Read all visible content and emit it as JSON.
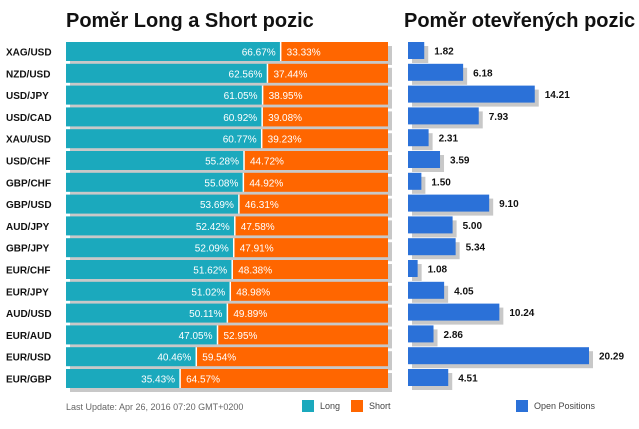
{
  "titles": {
    "left": "Poměr Long a Short pozic",
    "right": "Poměr otevřených pozic"
  },
  "footer": {
    "last_update": "Last Update: Apr 26, 2016 07:20 GMT+0200"
  },
  "legend": {
    "long": "Long",
    "short": "Short",
    "open_positions": "Open Positions"
  },
  "colors": {
    "long": "#1ba9bd",
    "short": "#ff6600",
    "open": "#2b71d8",
    "shadow": "#c8c8c8"
  },
  "chart_data": [
    {
      "type": "bar",
      "stacked": true,
      "orientation": "horizontal",
      "title": "Poměr Long a Short pozic",
      "categories": [
        "XAG/USD",
        "NZD/USD",
        "USD/JPY",
        "USD/CAD",
        "XAU/USD",
        "USD/CHF",
        "GBP/CHF",
        "GBP/USD",
        "AUD/JPY",
        "GBP/JPY",
        "EUR/CHF",
        "EUR/JPY",
        "AUD/USD",
        "EUR/AUD",
        "EUR/USD",
        "EUR/GBP"
      ],
      "series": [
        {
          "name": "Long",
          "values": [
            66.67,
            62.56,
            61.05,
            60.92,
            60.77,
            55.28,
            55.08,
            53.69,
            52.42,
            52.09,
            51.62,
            51.02,
            50.11,
            47.05,
            40.46,
            35.43
          ],
          "labels": [
            "66.67%",
            "62.56%",
            "61.05%",
            "60.92%",
            "60.77%",
            "55.28%",
            "55.08%",
            "53.69%",
            "52.42%",
            "52.09%",
            "51.62%",
            "51.02%",
            "50.11%",
            "47.05%",
            "40.46%",
            "35.43%"
          ]
        },
        {
          "name": "Short",
          "values": [
            33.33,
            37.44,
            38.95,
            39.08,
            39.23,
            44.72,
            44.92,
            46.31,
            47.58,
            47.91,
            48.38,
            48.98,
            49.89,
            52.95,
            59.54,
            64.57
          ],
          "labels": [
            "33.33%",
            "37.44%",
            "38.95%",
            "39.08%",
            "39.23%",
            "44.72%",
            "44.92%",
            "46.31%",
            "47.58%",
            "47.91%",
            "48.38%",
            "48.98%",
            "49.89%",
            "52.95%",
            "59.54%",
            "64.57%"
          ]
        }
      ],
      "xlim": [
        0,
        100
      ]
    },
    {
      "type": "bar",
      "orientation": "horizontal",
      "title": "Poměr otevřených pozic",
      "categories": [
        "XAG/USD",
        "NZD/USD",
        "USD/JPY",
        "USD/CAD",
        "XAU/USD",
        "USD/CHF",
        "GBP/CHF",
        "GBP/USD",
        "AUD/JPY",
        "GBP/JPY",
        "EUR/CHF",
        "EUR/JPY",
        "AUD/USD",
        "EUR/AUD",
        "EUR/USD",
        "EUR/GBP"
      ],
      "series": [
        {
          "name": "Open Positions",
          "values": [
            1.82,
            6.18,
            14.21,
            7.93,
            2.31,
            3.59,
            1.5,
            9.1,
            5.0,
            5.34,
            1.08,
            4.05,
            10.24,
            2.86,
            20.29,
            4.51
          ],
          "labels": [
            "1.82",
            "6.18",
            "14.21",
            "7.93",
            "2.31",
            "3.59",
            "1.50",
            "9.10",
            "5.00",
            "5.34",
            "1.08",
            "4.05",
            "10.24",
            "2.86",
            "20.29",
            "4.51"
          ]
        }
      ],
      "xlim": [
        0,
        20.29
      ]
    }
  ]
}
